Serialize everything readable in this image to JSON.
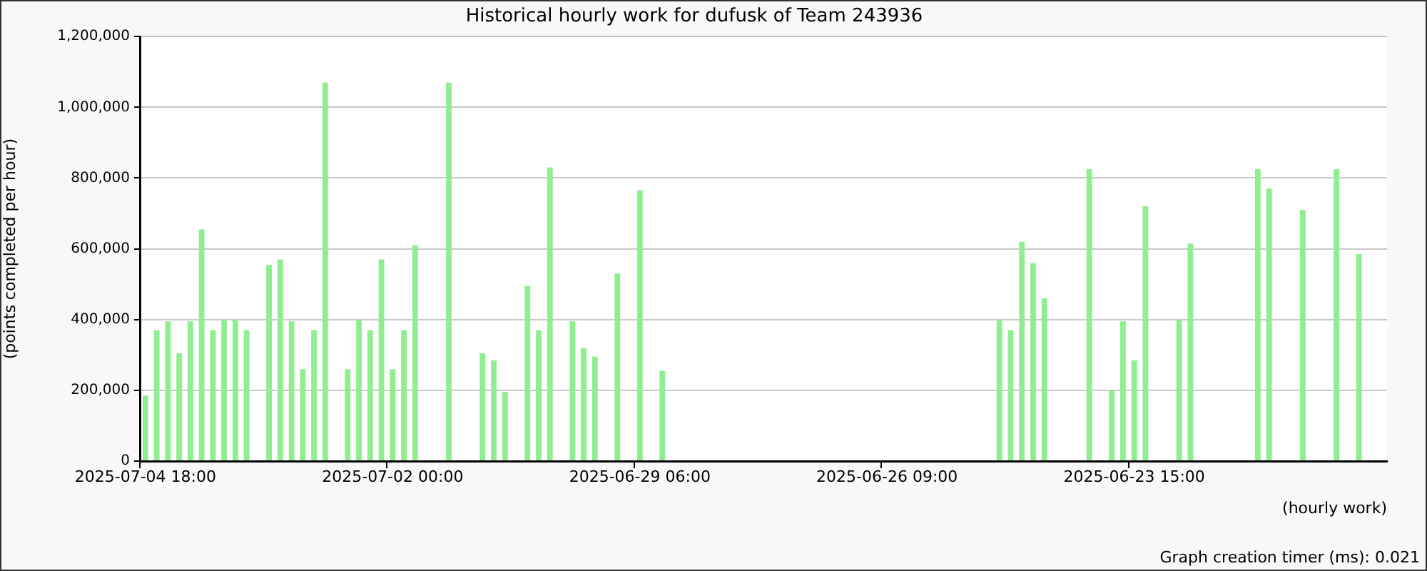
{
  "chart_data": {
    "type": "bar",
    "title": "Historical hourly work for dufusk of Team 243936",
    "xlabel": "(hourly work)",
    "ylabel": "(points completed per hour)",
    "annotations": [
      "Graph creation timer (ms): 0.021"
    ],
    "categories": [
      "2025-07-04 18:00",
      null,
      null,
      null,
      null,
      null,
      null,
      null,
      null,
      null,
      null,
      null,
      null,
      null,
      null,
      null,
      null,
      null,
      null,
      null,
      null,
      null,
      "2025-07-02 00:00",
      null,
      null,
      null,
      null,
      null,
      null,
      null,
      null,
      null,
      null,
      null,
      null,
      null,
      null,
      null,
      null,
      null,
      null,
      null,
      null,
      null,
      "2025-06-29 06:00",
      null,
      null,
      null,
      null,
      null,
      null,
      null,
      null,
      null,
      null,
      null,
      null,
      null,
      null,
      null,
      null,
      null,
      null,
      null,
      null,
      null,
      "2025-06-26 09:00",
      null,
      null,
      null,
      null,
      null,
      null,
      null,
      null,
      null,
      null,
      null,
      null,
      null,
      null,
      null,
      null,
      null,
      null,
      null,
      null,
      null,
      "2025-06-23 15:00",
      null,
      null,
      null,
      null,
      null,
      null,
      null,
      null,
      null,
      null,
      null,
      null,
      null,
      null,
      null,
      null,
      null,
      null,
      null,
      null,
      null,
      null
    ],
    "values": [
      185000,
      370000,
      395000,
      305000,
      395000,
      655000,
      370000,
      400000,
      400000,
      370000,
      null,
      555000,
      570000,
      395000,
      260000,
      370000,
      1070000,
      null,
      260000,
      400000,
      370000,
      570000,
      260000,
      370000,
      610000,
      null,
      null,
      1070000,
      null,
      null,
      305000,
      285000,
      195000,
      null,
      495000,
      370000,
      830000,
      null,
      395000,
      320000,
      295000,
      null,
      530000,
      null,
      765000,
      null,
      255000,
      null,
      null,
      null,
      null,
      null,
      null,
      null,
      null,
      null,
      null,
      null,
      null,
      null,
      null,
      null,
      null,
      null,
      null,
      null,
      null,
      null,
      null,
      null,
      null,
      null,
      null,
      null,
      null,
      null,
      400000,
      370000,
      620000,
      560000,
      460000,
      null,
      null,
      null,
      825000,
      null,
      200000,
      395000,
      285000,
      720000,
      null,
      null,
      400000,
      615000,
      null,
      null,
      null,
      null,
      null,
      825000,
      770000,
      null,
      null,
      710000,
      null,
      null,
      825000,
      null,
      585000,
      null,
      null
    ],
    "color": "#90ee90",
    "ylim": [
      0,
      1200000
    ],
    "yticks": [
      0,
      {
        "value": 200000,
        "label": "200,000"
      },
      {
        "value": 400000,
        "label": "400,000"
      },
      {
        "value": 600000,
        "label": "600,000"
      },
      {
        "value": 800000,
        "label": "800,000"
      },
      {
        "value": 1000000,
        "label": "1,000,000"
      },
      {
        "value": 1200000,
        "label": "1,200,000"
      }
    ],
    "grid": "y"
  }
}
